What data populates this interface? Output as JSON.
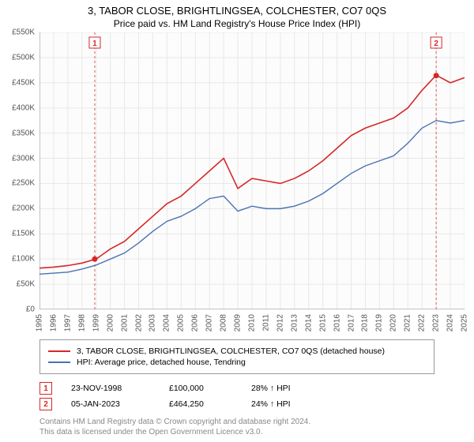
{
  "title_main": "3, TABOR CLOSE, BRIGHTLINGSEA, COLCHESTER, CO7 0QS",
  "title_sub": "Price paid vs. HM Land Registry's House Price Index (HPI)",
  "title_fontsize": 13,
  "subtitle_fontsize": 12,
  "chart": {
    "type": "line",
    "background_color": "#ffffff",
    "plot_background": "#fcfcfc",
    "grid_color": "#e8e8e8",
    "axis_line_color": "#888888",
    "ylim": [
      0,
      550000
    ],
    "ytick_step": 50000,
    "ytick_prefix": "£",
    "ytick_suffix": "K",
    "ytick_labels": [
      "£0",
      "£50K",
      "£100K",
      "£150K",
      "£200K",
      "£250K",
      "£300K",
      "£350K",
      "£400K",
      "£450K",
      "£500K",
      "£550K"
    ],
    "x_years": [
      1995,
      1996,
      1997,
      1998,
      1999,
      2000,
      2001,
      2002,
      2003,
      2004,
      2005,
      2006,
      2007,
      2008,
      2009,
      2010,
      2011,
      2012,
      2013,
      2014,
      2015,
      2016,
      2017,
      2018,
      2019,
      2020,
      2021,
      2022,
      2023,
      2024,
      2025
    ],
    "series": [
      {
        "name": "price_paid",
        "label": "3, TABOR CLOSE, BRIGHTLINGSEA, COLCHESTER, CO7 0QS (detached house)",
        "color": "#d62728",
        "line_width": 1.6,
        "values": [
          82000,
          84000,
          87000,
          92000,
          100000,
          120000,
          135000,
          160000,
          185000,
          210000,
          225000,
          250000,
          275000,
          300000,
          240000,
          260000,
          255000,
          250000,
          260000,
          275000,
          295000,
          320000,
          345000,
          360000,
          370000,
          380000,
          400000,
          435000,
          465000,
          450000,
          460000
        ]
      },
      {
        "name": "hpi",
        "label": "HPI: Average price, detached house, Tendring",
        "color": "#4a72b2",
        "line_width": 1.4,
        "values": [
          70000,
          72000,
          74000,
          80000,
          88000,
          100000,
          112000,
          132000,
          155000,
          175000,
          185000,
          200000,
          220000,
          225000,
          195000,
          205000,
          200000,
          200000,
          205000,
          215000,
          230000,
          250000,
          270000,
          285000,
          295000,
          305000,
          330000,
          360000,
          375000,
          370000,
          375000
        ]
      }
    ],
    "markers": [
      {
        "num": "1",
        "year": 1998.9,
        "value": 100000,
        "date_label": "23-NOV-1998",
        "price_label": "£100,000",
        "delta_label": "28% ↑ HPI",
        "color": "#d62728"
      },
      {
        "num": "2",
        "year": 2023.0,
        "value": 464250,
        "date_label": "05-JAN-2023",
        "price_label": "£464,250",
        "delta_label": "24% ↑ HPI",
        "color": "#d62728"
      }
    ],
    "marker_line_color": "#d85f5f",
    "marker_line_dash": "3,3"
  },
  "legend": {
    "border_color": "#999999",
    "fontsize": 10.5
  },
  "footer_line1": "Contains HM Land Registry data © Crown copyright and database right 2024.",
  "footer_line2": "This data is licensed under the Open Government Licence v3.0.",
  "footer_color": "#888888"
}
